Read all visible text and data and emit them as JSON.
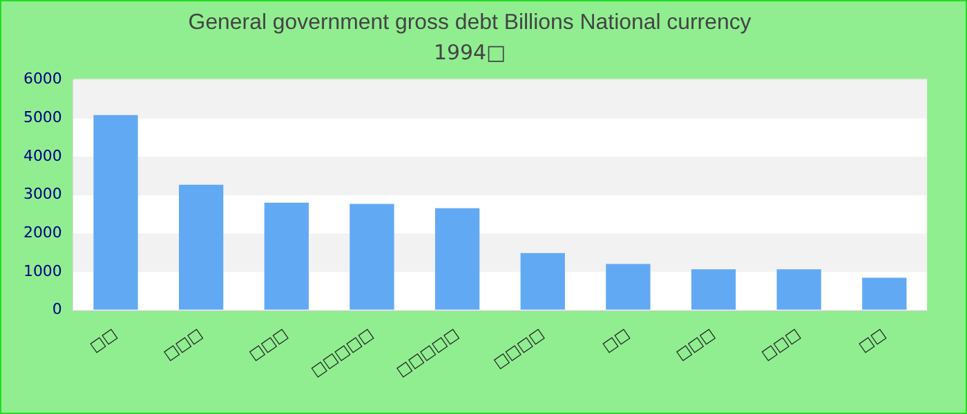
{
  "chart_data": {
    "type": "bar",
    "title": "General government gross debt Billions National currency",
    "subtitle": "1994□",
    "categories": [
      "□□",
      "□□□",
      "□□□",
      "□□□□□",
      "□□□□□",
      "□□□□",
      "□□",
      "□□□",
      "□□□",
      "□□"
    ],
    "values": [
      5080,
      3270,
      2800,
      2770,
      2660,
      1490,
      1210,
      1070,
      1070,
      850
    ],
    "color": "#62a9f4",
    "ylim": [
      0,
      6000
    ],
    "yticks": [
      0,
      1000,
      2000,
      3000,
      4000,
      5000,
      6000
    ],
    "grid": "y",
    "legend": false
  }
}
